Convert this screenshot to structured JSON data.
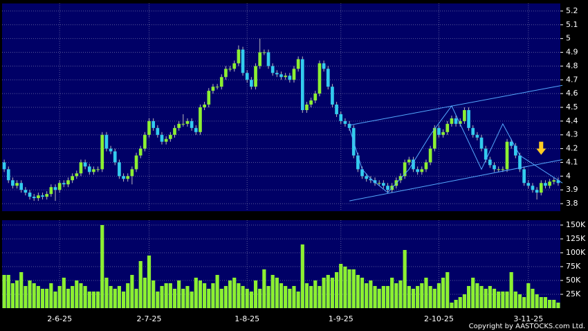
{
  "chart_data": {
    "type": "candlestick",
    "up_color": "#8cf032",
    "down_color": "#33ccee",
    "grid": true,
    "categories": [
      null,
      null,
      null,
      null,
      null,
      null,
      null,
      null,
      null,
      null,
      null,
      null,
      null,
      "2-6-25",
      null,
      null,
      null,
      null,
      null,
      null,
      null,
      null,
      null,
      null,
      null,
      null,
      null,
      null,
      null,
      null,
      null,
      null,
      null,
      null,
      "2-7-25",
      null,
      null,
      null,
      null,
      null,
      null,
      null,
      null,
      null,
      null,
      null,
      null,
      null,
      null,
      null,
      null,
      null,
      null,
      null,
      null,
      null,
      null,
      "1-8-25",
      null,
      null,
      null,
      null,
      null,
      null,
      null,
      null,
      null,
      null,
      null,
      null,
      null,
      null,
      null,
      null,
      null,
      null,
      null,
      null,
      null,
      "1-9-25",
      null,
      null,
      null,
      null,
      null,
      null,
      null,
      null,
      null,
      null,
      null,
      null,
      null,
      null,
      null,
      null,
      null,
      null,
      null,
      null,
      null,
      null,
      "2-10-25",
      null,
      null,
      null,
      null,
      null,
      null,
      null,
      null,
      null,
      null,
      null,
      null,
      null,
      null,
      null,
      null,
      null,
      null,
      null,
      null,
      "3-11-25",
      null,
      null,
      null,
      null,
      null,
      null,
      null
    ],
    "ohlc": [
      [
        4.1,
        4.12,
        4.03,
        4.05
      ],
      [
        4.05,
        4.07,
        3.95,
        3.97
      ],
      [
        3.97,
        3.99,
        3.91,
        3.93
      ],
      [
        3.93,
        3.97,
        3.91,
        3.95
      ],
      [
        3.95,
        3.97,
        3.88,
        3.9
      ],
      [
        3.9,
        3.92,
        3.86,
        3.88
      ],
      [
        3.88,
        3.9,
        3.83,
        3.85
      ],
      [
        3.85,
        3.87,
        3.82,
        3.84
      ],
      [
        3.84,
        3.88,
        3.82,
        3.86
      ],
      [
        3.86,
        3.88,
        3.83,
        3.85
      ],
      [
        3.85,
        3.89,
        3.83,
        3.87
      ],
      [
        3.87,
        3.94,
        3.85,
        3.92
      ],
      [
        3.92,
        3.94,
        3.82,
        3.9
      ],
      [
        3.9,
        3.97,
        3.88,
        3.95
      ],
      [
        3.95,
        3.97,
        3.92,
        3.94
      ],
      [
        3.94,
        3.99,
        3.92,
        3.97
      ],
      [
        3.97,
        4.02,
        3.95,
        4.0
      ],
      [
        4.0,
        4.04,
        3.98,
        4.02
      ],
      [
        4.02,
        4.12,
        4.0,
        4.1
      ],
      [
        4.1,
        4.12,
        4.05,
        4.07
      ],
      [
        4.07,
        4.09,
        4.01,
        4.03
      ],
      [
        4.03,
        4.07,
        4.01,
        4.05
      ],
      [
        4.05,
        4.07,
        4.03,
        4.05
      ],
      [
        4.05,
        4.32,
        4.03,
        4.3
      ],
      [
        4.3,
        4.32,
        4.18,
        4.2
      ],
      [
        4.2,
        4.22,
        4.16,
        4.18
      ],
      [
        4.18,
        4.2,
        4.08,
        4.1
      ],
      [
        4.1,
        4.12,
        3.98,
        4.0
      ],
      [
        4.0,
        4.02,
        3.96,
        3.98
      ],
      [
        3.98,
        4.02,
        3.96,
        4.0
      ],
      [
        4.0,
        4.07,
        3.94,
        4.05
      ],
      [
        4.05,
        4.17,
        4.03,
        4.15
      ],
      [
        4.15,
        4.22,
        4.13,
        4.2
      ],
      [
        4.2,
        4.32,
        4.18,
        4.3
      ],
      [
        4.3,
        4.42,
        4.28,
        4.4
      ],
      [
        4.4,
        4.42,
        4.33,
        4.35
      ],
      [
        4.35,
        4.37,
        4.28,
        4.3
      ],
      [
        4.3,
        4.32,
        4.23,
        4.25
      ],
      [
        4.25,
        4.29,
        4.23,
        4.27
      ],
      [
        4.27,
        4.32,
        4.25,
        4.3
      ],
      [
        4.3,
        4.37,
        4.28,
        4.35
      ],
      [
        4.35,
        4.4,
        4.33,
        4.38
      ],
      [
        4.38,
        4.45,
        4.36,
        4.38
      ],
      [
        4.38,
        4.42,
        4.36,
        4.4
      ],
      [
        4.4,
        4.42,
        4.33,
        4.35
      ],
      [
        4.35,
        4.37,
        4.3,
        4.32
      ],
      [
        4.32,
        4.52,
        4.3,
        4.5
      ],
      [
        4.5,
        4.54,
        4.48,
        4.52
      ],
      [
        4.52,
        4.64,
        4.5,
        4.62
      ],
      [
        4.62,
        4.67,
        4.6,
        4.65
      ],
      [
        4.65,
        4.67,
        4.63,
        4.65
      ],
      [
        4.65,
        4.74,
        4.63,
        4.72
      ],
      [
        4.72,
        4.8,
        4.7,
        4.78
      ],
      [
        4.78,
        4.8,
        4.76,
        4.78
      ],
      [
        4.78,
        4.84,
        4.76,
        4.82
      ],
      [
        4.82,
        4.95,
        4.8,
        4.92
      ],
      [
        4.92,
        4.94,
        4.73,
        4.75
      ],
      [
        4.75,
        4.77,
        4.68,
        4.7
      ],
      [
        4.7,
        4.72,
        4.63,
        4.65
      ],
      [
        4.65,
        4.82,
        4.63,
        4.8
      ],
      [
        4.8,
        5.0,
        4.78,
        4.9
      ],
      [
        4.9,
        4.92,
        4.88,
        4.9
      ],
      [
        4.9,
        4.92,
        4.78,
        4.8
      ],
      [
        4.8,
        4.82,
        4.73,
        4.75
      ],
      [
        4.75,
        4.77,
        4.72,
        4.74
      ],
      [
        4.74,
        4.76,
        4.7,
        4.72
      ],
      [
        4.72,
        4.75,
        4.7,
        4.73
      ],
      [
        4.73,
        4.75,
        4.68,
        4.7
      ],
      [
        4.7,
        4.8,
        4.68,
        4.78
      ],
      [
        4.78,
        4.87,
        4.76,
        4.85
      ],
      [
        4.85,
        4.87,
        4.46,
        4.48
      ],
      [
        4.48,
        4.54,
        4.46,
        4.52
      ],
      [
        4.52,
        4.57,
        4.5,
        4.55
      ],
      [
        4.55,
        4.62,
        4.53,
        4.6
      ],
      [
        4.6,
        4.84,
        4.58,
        4.82
      ],
      [
        4.82,
        4.84,
        4.76,
        4.78
      ],
      [
        4.78,
        4.8,
        4.63,
        4.65
      ],
      [
        4.65,
        4.67,
        4.5,
        4.52
      ],
      [
        4.52,
        4.54,
        4.43,
        4.45
      ],
      [
        4.45,
        4.47,
        4.38,
        4.4
      ],
      [
        4.4,
        4.42,
        4.36,
        4.38
      ],
      [
        4.38,
        4.4,
        4.33,
        4.35
      ],
      [
        4.35,
        4.37,
        4.13,
        4.15
      ],
      [
        4.15,
        4.17,
        4.03,
        4.05
      ],
      [
        4.05,
        4.07,
        3.98,
        4.0
      ],
      [
        4.0,
        4.02,
        3.96,
        3.98
      ],
      [
        3.98,
        4.0,
        3.95,
        3.97
      ],
      [
        3.97,
        3.99,
        3.93,
        3.95
      ],
      [
        3.95,
        3.97,
        3.93,
        3.95
      ],
      [
        3.95,
        3.97,
        3.91,
        3.93
      ],
      [
        3.93,
        3.95,
        3.88,
        3.9
      ],
      [
        3.9,
        3.95,
        3.88,
        3.93
      ],
      [
        3.93,
        3.99,
        3.91,
        3.97
      ],
      [
        3.97,
        4.02,
        3.95,
        4.0
      ],
      [
        4.0,
        4.12,
        3.98,
        4.1
      ],
      [
        4.1,
        4.14,
        4.08,
        4.12
      ],
      [
        4.12,
        4.14,
        4.03,
        4.05
      ],
      [
        4.05,
        4.07,
        4.01,
        4.03
      ],
      [
        4.03,
        4.07,
        4.01,
        4.05
      ],
      [
        4.05,
        4.12,
        4.03,
        4.1
      ],
      [
        4.1,
        4.22,
        4.08,
        4.2
      ],
      [
        4.2,
        4.37,
        4.18,
        4.35
      ],
      [
        4.35,
        4.37,
        4.28,
        4.3
      ],
      [
        4.3,
        4.34,
        4.28,
        4.32
      ],
      [
        4.32,
        4.4,
        4.3,
        4.38
      ],
      [
        4.38,
        4.44,
        4.36,
        4.42
      ],
      [
        4.42,
        4.44,
        4.36,
        4.38
      ],
      [
        4.38,
        4.42,
        4.36,
        4.4
      ],
      [
        4.4,
        4.5,
        4.38,
        4.48
      ],
      [
        4.48,
        4.5,
        4.33,
        4.35
      ],
      [
        4.35,
        4.37,
        4.28,
        4.3
      ],
      [
        4.3,
        4.32,
        4.26,
        4.28
      ],
      [
        4.28,
        4.3,
        4.18,
        4.2
      ],
      [
        4.2,
        4.22,
        4.1,
        4.12
      ],
      [
        4.12,
        4.14,
        4.06,
        4.08
      ],
      [
        4.08,
        4.1,
        4.03,
        4.05
      ],
      [
        4.05,
        4.07,
        4.03,
        4.05
      ],
      [
        4.05,
        4.07,
        4.03,
        4.05
      ],
      [
        4.05,
        4.27,
        4.03,
        4.25
      ],
      [
        4.25,
        4.27,
        4.2,
        4.22
      ],
      [
        4.22,
        4.24,
        4.13,
        4.15
      ],
      [
        4.15,
        4.17,
        4.03,
        4.05
      ],
      [
        4.05,
        4.07,
        3.93,
        3.95
      ],
      [
        3.95,
        3.97,
        3.91,
        3.93
      ],
      [
        3.93,
        3.95,
        3.88,
        3.9
      ],
      [
        3.9,
        3.92,
        3.83,
        3.88
      ],
      [
        3.88,
        3.97,
        3.86,
        3.95
      ],
      [
        3.95,
        3.97,
        3.91,
        3.93
      ],
      [
        3.93,
        3.98,
        3.91,
        3.96
      ],
      [
        3.96,
        3.99,
        3.94,
        3.97
      ],
      [
        3.97,
        3.99,
        3.93,
        3.95
      ]
    ],
    "ylim": [
      3.745,
      5.255
    ],
    "yticks": [
      3.8,
      3.9,
      4,
      4.1,
      4.2,
      4.3,
      4.4,
      4.5,
      4.6,
      4.7,
      4.8,
      4.9,
      5,
      5.1,
      5.2
    ],
    "trendlines": [
      {
        "color": "#55aaff",
        "x": [
          81,
          131
        ],
        "y": [
          4.37,
          4.66
        ]
      },
      {
        "color": "#55aaff",
        "x": [
          81,
          131
        ],
        "y": [
          3.82,
          4.12
        ]
      },
      {
        "color": "#55aaff",
        "x": [
          81,
          84,
          86,
          90,
          95,
          100,
          105,
          112,
          117,
          121,
          131
        ],
        "y": [
          4.35,
          4.05,
          3.98,
          3.88,
          4.05,
          4.3,
          4.51,
          4.05,
          4.38,
          4.15,
          3.95
        ]
      }
    ],
    "arrow": {
      "index": 126,
      "price": 4.2,
      "color": "#ffcc22"
    },
    "volume": {
      "color": "#8cf032",
      "values": [
        60000,
        60000,
        45000,
        50000,
        65000,
        40000,
        50000,
        45000,
        40000,
        35000,
        35000,
        45000,
        30000,
        40000,
        55000,
        35000,
        40000,
        50000,
        45000,
        40000,
        30000,
        30000,
        30000,
        150000,
        55000,
        40000,
        35000,
        40000,
        30000,
        45000,
        60000,
        35000,
        85000,
        55000,
        95000,
        50000,
        30000,
        40000,
        45000,
        45000,
        35000,
        50000,
        35000,
        40000,
        30000,
        55000,
        50000,
        45000,
        35000,
        45000,
        60000,
        35000,
        40000,
        50000,
        55000,
        45000,
        40000,
        35000,
        30000,
        50000,
        35000,
        70000,
        40000,
        60000,
        55000,
        45000,
        40000,
        35000,
        40000,
        30000,
        115000,
        45000,
        40000,
        50000,
        40000,
        55000,
        60000,
        55000,
        65000,
        80000,
        75000,
        70000,
        70000,
        60000,
        55000,
        45000,
        50000,
        40000,
        35000,
        40000,
        40000,
        55000,
        45000,
        50000,
        105000,
        40000,
        35000,
        40000,
        45000,
        55000,
        40000,
        35000,
        45000,
        55000,
        65000,
        10000,
        15000,
        20000,
        25000,
        40000,
        55000,
        45000,
        40000,
        35000,
        40000,
        35000,
        30000,
        30000,
        30000,
        65000,
        30000,
        25000,
        20000,
        45000,
        35000,
        25000,
        20000,
        20000,
        15000,
        15000,
        10000
      ],
      "ylim": [
        0,
        158750
      ],
      "yticks": [
        {
          "value": 25000,
          "label": "25K"
        },
        {
          "value": 50000,
          "label": "50K"
        },
        {
          "value": 75000,
          "label": "75K"
        },
        {
          "value": 100000,
          "label": "100K"
        },
        {
          "value": 125000,
          "label": "125K"
        },
        {
          "value": 150000,
          "label": "150K"
        }
      ]
    },
    "copyright": "Copyright by AASTOCKS.com Ltd."
  }
}
